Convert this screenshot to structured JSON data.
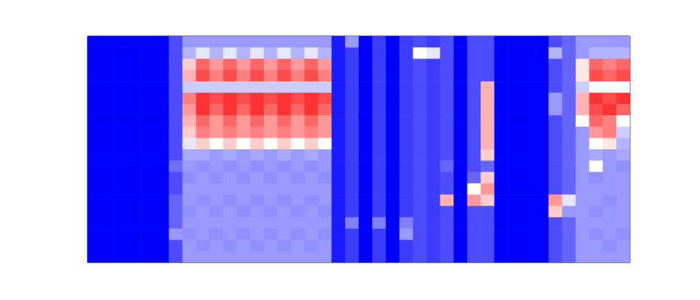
{
  "chart_data": {
    "type": "heatmap",
    "tick_labels": false,
    "zlim": [
      0,
      1
    ],
    "cells": [
      [
        0,
        0,
        0,
        0,
        0,
        0,
        0.15,
        0.3,
        0.3,
        0.3,
        0.3,
        0.3,
        0.3,
        0.3,
        0.3,
        0.3,
        0.3,
        0.3,
        0.05,
        0.3,
        0,
        0.12,
        0,
        0.12,
        0.15,
        0.12,
        0.15,
        0,
        0.15,
        0.15,
        0,
        0,
        0,
        0,
        0.15,
        0.2,
        0.3,
        0.3,
        0.3,
        0.3
      ],
      [
        0,
        0,
        0,
        0,
        0,
        0,
        0.15,
        0.35,
        0.45,
        0.35,
        0.45,
        0.35,
        0.45,
        0.35,
        0.45,
        0.35,
        0.45,
        0.35,
        0.05,
        0.12,
        0,
        0.12,
        0,
        0.12,
        0.5,
        0.45,
        0.15,
        0,
        0.15,
        0.15,
        0,
        0,
        0,
        0,
        0.35,
        0.2,
        0.3,
        0.35,
        0.35,
        0.35
      ],
      [
        0,
        0,
        0,
        0,
        0,
        0,
        0.15,
        0.6,
        0.8,
        0.7,
        0.8,
        0.7,
        0.8,
        0.7,
        0.8,
        0.7,
        0.8,
        0.7,
        0.05,
        0.12,
        0,
        0.12,
        0,
        0.12,
        0.15,
        0.12,
        0.15,
        0,
        0.15,
        0.15,
        0,
        0,
        0,
        0,
        0.15,
        0.2,
        0.55,
        0.8,
        0.75,
        0.8
      ],
      [
        0,
        0,
        0,
        0,
        0,
        0,
        0.15,
        0.65,
        0.85,
        0.75,
        0.85,
        0.75,
        0.85,
        0.75,
        0.85,
        0.75,
        0.85,
        0.75,
        0.05,
        0.12,
        0,
        0.12,
        0,
        0.12,
        0.15,
        0.12,
        0.15,
        0,
        0.15,
        0.15,
        0,
        0,
        0,
        0,
        0.15,
        0.2,
        0.55,
        0.85,
        0.8,
        0.85
      ],
      [
        0,
        0,
        0,
        0,
        0,
        0,
        0.15,
        0.4,
        0.4,
        0.4,
        0.4,
        0.4,
        0.4,
        0.4,
        0.4,
        0.4,
        0.4,
        0.4,
        0.05,
        0.12,
        0,
        0.12,
        0,
        0.12,
        0.15,
        0.12,
        0.15,
        0,
        0.15,
        0.65,
        0,
        0,
        0,
        0,
        0.15,
        0.2,
        0.4,
        0.5,
        0.5,
        0.5
      ],
      [
        0,
        0,
        0,
        0,
        0,
        0,
        0.15,
        0.75,
        0.9,
        0.85,
        0.9,
        0.85,
        0.9,
        0.85,
        0.9,
        0.85,
        0.9,
        0.85,
        0.05,
        0.12,
        0,
        0.12,
        0,
        0.12,
        0.15,
        0.12,
        0.15,
        0,
        0.15,
        0.65,
        0,
        0,
        0,
        0,
        0.3,
        0.2,
        0.65,
        0.9,
        0.85,
        0.9
      ],
      [
        0,
        0,
        0,
        0,
        0,
        0,
        0.15,
        0.7,
        0.9,
        0.8,
        0.9,
        0.8,
        0.9,
        0.8,
        0.9,
        0.8,
        0.9,
        0.8,
        0.05,
        0.12,
        0,
        0.12,
        0,
        0.12,
        0.15,
        0.12,
        0.15,
        0,
        0.15,
        0.65,
        0,
        0,
        0,
        0,
        0.3,
        0.2,
        0.65,
        0.85,
        0.9,
        0.8
      ],
      [
        0,
        0,
        0,
        0,
        0,
        0,
        0.15,
        0.65,
        0.8,
        0.7,
        0.8,
        0.7,
        0.8,
        0.7,
        0.8,
        0.7,
        0.8,
        0.7,
        0.05,
        0.12,
        0,
        0.12,
        0,
        0.12,
        0.15,
        0.12,
        0.15,
        0,
        0.15,
        0.65,
        0,
        0,
        0,
        0,
        0.15,
        0.2,
        0.5,
        0.8,
        0.75,
        0.5
      ],
      [
        0,
        0,
        0,
        0,
        0,
        0,
        0.15,
        0.6,
        0.75,
        0.7,
        0.75,
        0.7,
        0.75,
        0.7,
        0.75,
        0.7,
        0.75,
        0.7,
        0.05,
        0.12,
        0,
        0.12,
        0,
        0.12,
        0.15,
        0.12,
        0.15,
        0,
        0.15,
        0.65,
        0,
        0,
        0,
        0,
        0.15,
        0.2,
        0.3,
        0.7,
        0.75,
        0.4
      ],
      [
        0,
        0,
        0,
        0,
        0,
        0,
        0.15,
        0.45,
        0.6,
        0.5,
        0.6,
        0.5,
        0.6,
        0.5,
        0.6,
        0.5,
        0.6,
        0.5,
        0.05,
        0.12,
        0,
        0.12,
        0,
        0.12,
        0.15,
        0.12,
        0.15,
        0,
        0.15,
        0.65,
        0,
        0,
        0,
        0,
        0.15,
        0.2,
        0.3,
        0.5,
        0.55,
        0.35
      ],
      [
        0,
        0,
        0,
        0,
        0,
        0,
        0.15,
        0.33,
        0.33,
        0.3,
        0.33,
        0.3,
        0.33,
        0.3,
        0.33,
        0.3,
        0.33,
        0.3,
        0.05,
        0.12,
        0,
        0.12,
        0,
        0.12,
        0.15,
        0.12,
        0.15,
        0,
        0.15,
        0.6,
        0,
        0,
        0,
        0,
        0.15,
        0.2,
        0.3,
        0.33,
        0.3,
        0.33
      ],
      [
        0,
        0,
        0,
        0,
        0,
        0,
        0.22,
        0.3,
        0.28,
        0.3,
        0.28,
        0.3,
        0.28,
        0.3,
        0.28,
        0.3,
        0.28,
        0.3,
        0.05,
        0.12,
        0,
        0.12,
        0,
        0.12,
        0.15,
        0.12,
        0.2,
        0,
        0.15,
        0.2,
        0,
        0,
        0,
        0,
        0.15,
        0.2,
        0.3,
        0.5,
        0.3,
        0.28
      ],
      [
        0,
        0,
        0,
        0,
        0,
        0,
        0.15,
        0.28,
        0.3,
        0.28,
        0.3,
        0.28,
        0.3,
        0.28,
        0.3,
        0.28,
        0.3,
        0.28,
        0.05,
        0.12,
        0,
        0.12,
        0,
        0.12,
        0.15,
        0.12,
        0.15,
        0,
        0.2,
        0.6,
        0,
        0,
        0,
        0,
        0.15,
        0.2,
        0.3,
        0.28,
        0.3,
        0.3
      ],
      [
        0,
        0,
        0,
        0,
        0,
        0,
        0.15,
        0.3,
        0.3,
        0.3,
        0.3,
        0.3,
        0.3,
        0.3,
        0.3,
        0.3,
        0.3,
        0.3,
        0.05,
        0.12,
        0,
        0.12,
        0,
        0.12,
        0.15,
        0.12,
        0.15,
        0,
        0.5,
        0.7,
        0,
        0,
        0,
        0,
        0.15,
        0.2,
        0.3,
        0.3,
        0.3,
        0.3
      ],
      [
        0,
        0,
        0,
        0,
        0,
        0,
        0.2,
        0.3,
        0.28,
        0.3,
        0.28,
        0.3,
        0.28,
        0.3,
        0.28,
        0.3,
        0.28,
        0.3,
        0.05,
        0.12,
        0,
        0.12,
        0,
        0.12,
        0.15,
        0.12,
        0.65,
        0,
        0.7,
        0.6,
        0,
        0,
        0,
        0,
        0.7,
        0.45,
        0.3,
        0.3,
        0.28,
        0.3
      ],
      [
        0,
        0,
        0,
        0,
        0,
        0,
        0.2,
        0.28,
        0.3,
        0.28,
        0.3,
        0.28,
        0.3,
        0.28,
        0.3,
        0.28,
        0.3,
        0.28,
        0.05,
        0.12,
        0,
        0.12,
        0,
        0.12,
        0.15,
        0.12,
        0.15,
        0,
        0.15,
        0.15,
        0,
        0,
        0,
        0,
        0.6,
        0.3,
        0.3,
        0.28,
        0.3,
        0.3
      ],
      [
        0,
        0,
        0,
        0,
        0,
        0,
        0.2,
        0.3,
        0.3,
        0.3,
        0.3,
        0.3,
        0.3,
        0.3,
        0.3,
        0.3,
        0.3,
        0.3,
        0.05,
        0.25,
        0,
        0.25,
        0,
        0.25,
        0.15,
        0.12,
        0.15,
        0,
        0.15,
        0.15,
        0,
        0,
        0,
        0,
        0.15,
        0.2,
        0.3,
        0.3,
        0.3,
        0.3
      ],
      [
        0,
        0,
        0,
        0,
        0,
        0,
        0.3,
        0.28,
        0.3,
        0.28,
        0.3,
        0.28,
        0.3,
        0.28,
        0.3,
        0.28,
        0.3,
        0.28,
        0.05,
        0.12,
        0,
        0.12,
        0,
        0.3,
        0.15,
        0.12,
        0.15,
        0,
        0.15,
        0.15,
        0,
        0,
        0,
        0,
        0.15,
        0.2,
        0.3,
        0.28,
        0.3,
        0.28
      ],
      [
        0,
        0,
        0,
        0,
        0,
        0,
        0.15,
        0.3,
        0.28,
        0.3,
        0.28,
        0.3,
        0.28,
        0.3,
        0.28,
        0.3,
        0.28,
        0.3,
        0.05,
        0.12,
        0,
        0.12,
        0,
        0.12,
        0.15,
        0.12,
        0.15,
        0,
        0.15,
        0.15,
        0,
        0,
        0,
        0,
        0.15,
        0.2,
        0.3,
        0.3,
        0.28,
        0.3
      ],
      [
        0,
        0,
        0,
        0,
        0,
        0,
        0.15,
        0.3,
        0.3,
        0.3,
        0.3,
        0.3,
        0.3,
        0.3,
        0.3,
        0.3,
        0.3,
        0.3,
        0.05,
        0.12,
        0,
        0.12,
        0,
        0.12,
        0.15,
        0.12,
        0.15,
        0,
        0.15,
        0.15,
        0,
        0,
        0,
        0,
        0.15,
        0.2,
        0.3,
        0.3,
        0.3,
        0.3
      ]
    ]
  }
}
